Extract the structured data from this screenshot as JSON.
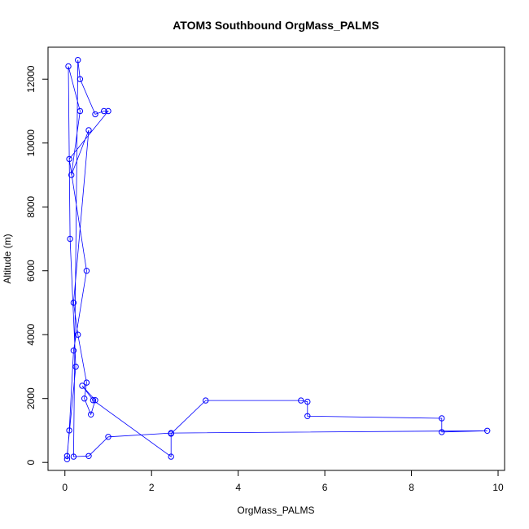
{
  "chart_data": {
    "type": "scatter",
    "title": "ATOM3 Southbound OrgMass_PALMS",
    "xlabel": "OrgMass_PALMS",
    "ylabel": "Altitude (m)",
    "xlim": [
      -0.39,
      10.15
    ],
    "ylim": [
      -250,
      13000
    ],
    "x_ticks": [
      0,
      2,
      4,
      6,
      8,
      10
    ],
    "y_ticks": [
      0,
      2000,
      4000,
      6000,
      8000,
      10000,
      12000
    ],
    "grid": false,
    "connected": true,
    "marker": "open-circle",
    "colors": {
      "series": "#0000ff",
      "axis": "#000000"
    },
    "series": [
      {
        "x": [
          0.05,
          0.25,
          0.12,
          0.08,
          0.35,
          0.15,
          0.55,
          0.2,
          0.3,
          0.5,
          0.45,
          0.6,
          0.7,
          0.4,
          0.65,
          2.45,
          2.45,
          3.25,
          5.45,
          5.6,
          5.6,
          8.7,
          8.7,
          9.75,
          2.45,
          1.0,
          0.55,
          0.2,
          0.3,
          0.35,
          0.7,
          0.9,
          1.0,
          0.1,
          0.5,
          0.2,
          0.1,
          0.05
        ],
        "y": [
          200,
          3000,
          7000,
          12400,
          11000,
          9000,
          10400,
          5000,
          4000,
          2500,
          2000,
          1500,
          1950,
          2400,
          1950,
          180,
          900,
          1940,
          1940,
          1900,
          1450,
          1380,
          950,
          990,
          920,
          800,
          200,
          180,
          12600,
          12000,
          10900,
          11000,
          11000,
          9500,
          6000,
          3500,
          1000,
          100
        ]
      }
    ]
  }
}
